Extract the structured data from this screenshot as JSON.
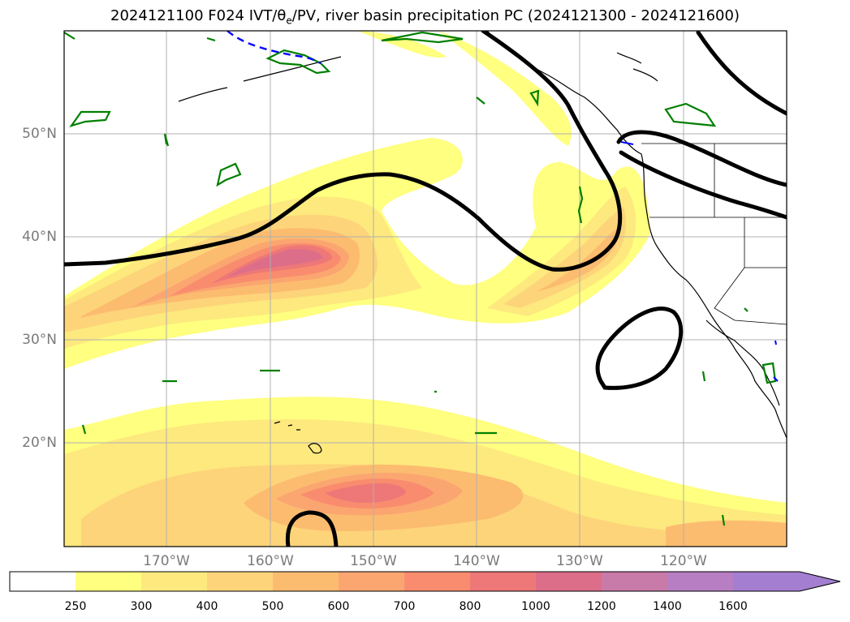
{
  "title": {
    "prefix": "2024121100 F024 IVT/θ",
    "sub": "e",
    "suffix": "/PV, river basin precipitation PC (2024121300 - 2024121600)"
  },
  "map": {
    "lat_labels": [
      "50°N",
      "40°N",
      "30°N",
      "20°N"
    ],
    "lon_labels": [
      "170°W",
      "160°W",
      "150°W",
      "140°W",
      "130°W",
      "120°W"
    ],
    "fill_colors": {
      "250": "#ffff80",
      "300": "#fde97e",
      "400": "#fdd47a",
      "500": "#fcbc70",
      "600": "#fba670",
      "700": "#f98c6e",
      "800": "#ee7878",
      "1000": "#dc6e8a",
      "1200": "#c87aa8",
      "1400": "#b87ec4",
      "1600": "#a47ed0"
    },
    "contour_color": "#000000",
    "pv_color": "#008000",
    "dashed_color": "#0000ff"
  },
  "colorbar": {
    "ticks": [
      "250",
      "300",
      "400",
      "500",
      "600",
      "700",
      "800",
      "1000",
      "1200",
      "1400",
      "1600"
    ],
    "colors": [
      "#ffffff",
      "#ffff80",
      "#fde97e",
      "#fdd47a",
      "#fcbc70",
      "#fba670",
      "#f98c6e",
      "#ee7878",
      "#dc6e8a",
      "#c87aa8",
      "#b87ec4",
      "#a47ed0"
    ]
  }
}
